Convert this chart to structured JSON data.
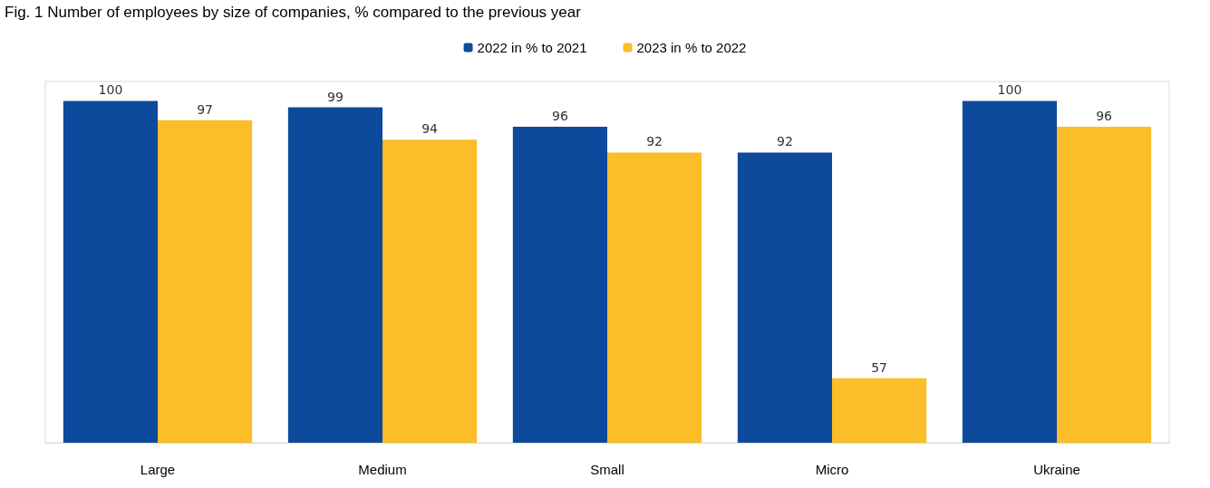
{
  "chart_data": {
    "type": "bar",
    "title": "Fig. 1 Number of employees by size of companies, % compared to the previous year",
    "categories": [
      "Large",
      "Medium",
      "Small",
      "Micro",
      "Ukraine"
    ],
    "series": [
      {
        "name": "2022 in % to 2021",
        "color": "#0e4a9c",
        "values": [
          100,
          99,
          96,
          92,
          100
        ]
      },
      {
        "name": "2023 in % to 2022",
        "color": "#fbbd28",
        "values": [
          97,
          94,
          92,
          57,
          96
        ]
      }
    ],
    "ylim": [
      47,
      103
    ],
    "tick_labels": "x",
    "data_labels": true,
    "legend": "top",
    "grid": false
  }
}
